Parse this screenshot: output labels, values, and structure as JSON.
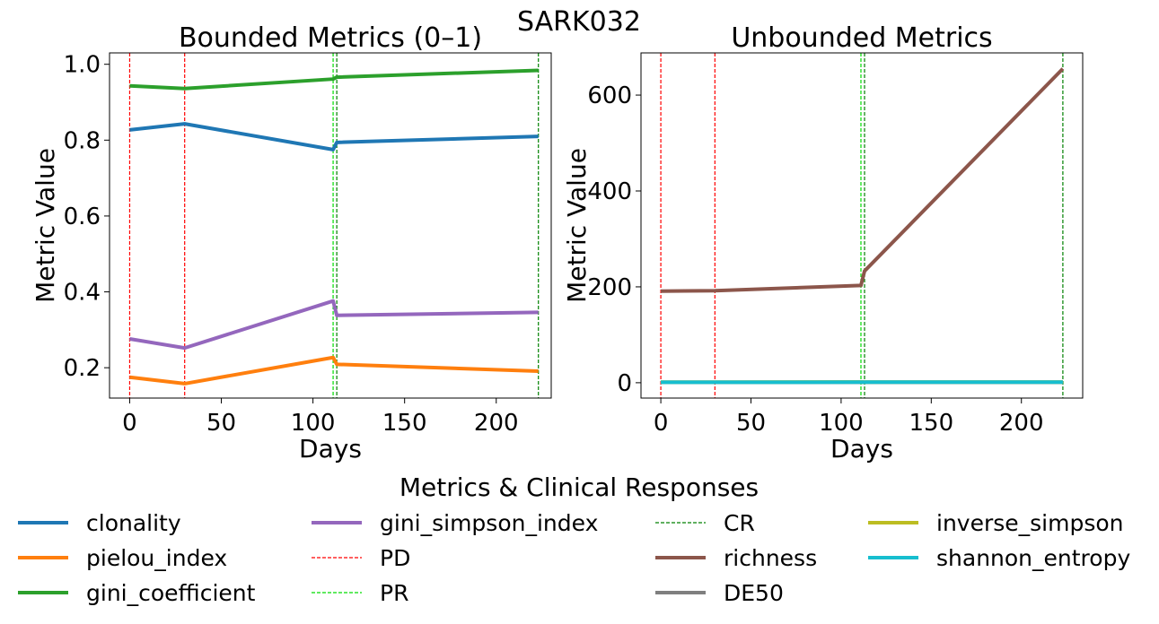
{
  "figure_title": "SARK032",
  "legend": {
    "title": "Metrics & Clinical Responses",
    "items": [
      {
        "label": "clonality",
        "color": "#1f77b4",
        "style": "solid"
      },
      {
        "label": "pielou_index",
        "color": "#ff7f0e",
        "style": "solid"
      },
      {
        "label": "gini_coefficient",
        "color": "#2ca02c",
        "style": "solid"
      },
      {
        "label": "gini_simpson_index",
        "color": "#9467bd",
        "style": "solid"
      },
      {
        "label": "PD",
        "color": "#ff0000",
        "style": "dashed"
      },
      {
        "label": "PR",
        "color": "#00dd00",
        "style": "dashed"
      },
      {
        "label": "CR",
        "color": "#008000",
        "style": "dashed"
      },
      {
        "label": "richness",
        "color": "#8c564b",
        "style": "solid"
      },
      {
        "label": "DE50",
        "color": "#7f7f7f",
        "style": "solid"
      },
      {
        "label": "inverse_simpson",
        "color": "#bcbd22",
        "style": "solid"
      },
      {
        "label": "shannon_entropy",
        "color": "#17becf",
        "style": "solid"
      }
    ]
  },
  "chart_data": [
    {
      "type": "line",
      "title": "Bounded Metrics (0–1)",
      "xlabel": "Days",
      "ylabel": "Metric Value",
      "xlim": [
        -11,
        230
      ],
      "ylim": [
        0.12,
        1.03
      ],
      "xticks": [
        "0",
        "50",
        "100",
        "150",
        "200"
      ],
      "yticks": [
        "0.2",
        "0.4",
        "0.6",
        "0.8",
        "1.0"
      ],
      "grid": false,
      "x": [
        0,
        30,
        111,
        113,
        223
      ],
      "series": [
        {
          "name": "clonality",
          "color": "#1f77b4",
          "values": [
            0.827,
            0.843,
            0.775,
            0.794,
            0.81
          ]
        },
        {
          "name": "pielou_index",
          "color": "#ff7f0e",
          "values": [
            0.175,
            0.158,
            0.227,
            0.209,
            0.191
          ]
        },
        {
          "name": "gini_coefficient",
          "color": "#2ca02c",
          "values": [
            0.943,
            0.936,
            0.961,
            0.966,
            0.984
          ]
        },
        {
          "name": "gini_simpson_index",
          "color": "#9467bd",
          "values": [
            0.276,
            0.252,
            0.376,
            0.338,
            0.346
          ]
        }
      ],
      "events": [
        {
          "name": "PD",
          "day": 0,
          "color": "#ff0000"
        },
        {
          "name": "PD",
          "day": 30,
          "color": "#ff0000"
        },
        {
          "name": "PR",
          "day": 111,
          "color": "#00dd00"
        },
        {
          "name": "CR",
          "day": 113,
          "color": "#008000"
        },
        {
          "name": "CR",
          "day": 223,
          "color": "#008000"
        }
      ]
    },
    {
      "type": "line",
      "title": "Unbounded Metrics",
      "xlabel": "Days",
      "ylabel": "Metric Value",
      "xlim": [
        -11,
        234
      ],
      "ylim": [
        -32,
        688
      ],
      "xticks": [
        "0",
        "50",
        "100",
        "150",
        "200"
      ],
      "yticks": [
        "0",
        "200",
        "400",
        "600"
      ],
      "grid": false,
      "x": [
        0,
        30,
        111,
        113,
        223
      ],
      "series": [
        {
          "name": "richness",
          "color": "#8c564b",
          "values": [
            191,
            192,
            203,
            233,
            655
          ]
        },
        {
          "name": "DE50",
          "color": "#7f7f7f",
          "values": [
            1,
            1,
            1,
            1,
            1
          ]
        },
        {
          "name": "inverse_simpson",
          "color": "#bcbd22",
          "values": [
            1.3,
            1.3,
            1.6,
            1.5,
            1.5
          ]
        },
        {
          "name": "shannon_entropy",
          "color": "#17becf",
          "values": [
            1.0,
            0.9,
            1.2,
            1.1,
            1.1
          ]
        }
      ],
      "events": [
        {
          "name": "PD",
          "day": 0,
          "color": "#ff0000"
        },
        {
          "name": "PD",
          "day": 30,
          "color": "#ff0000"
        },
        {
          "name": "PR",
          "day": 111,
          "color": "#00dd00"
        },
        {
          "name": "CR",
          "day": 113,
          "color": "#008000"
        },
        {
          "name": "CR",
          "day": 223,
          "color": "#008000"
        }
      ]
    }
  ]
}
